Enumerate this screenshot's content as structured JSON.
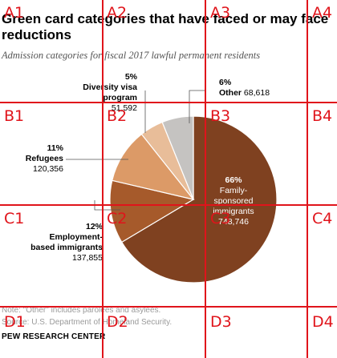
{
  "title": "Green card categories that have faced or may face reductions",
  "subtitle": "Admission categories for fiscal 2017 lawful permanent residents",
  "note": "Note: \"Other\" includes parolees and asylees.",
  "source": "Source: U.S. Department of Homeland Security.",
  "brand": "PEW RESEARCH CENTER",
  "chart_data": {
    "type": "pie",
    "slices": [
      {
        "pct": "66%",
        "name_lines": [
          "Family-",
          "sponsored",
          "immigrants"
        ],
        "value": "748,746",
        "color": "#7f4120"
      },
      {
        "pct": "12%",
        "name_lines": [
          "Employment-",
          "based immigrants"
        ],
        "value": "137,855",
        "color": "#a65a2b"
      },
      {
        "pct": "11%",
        "name_lines": [
          "Refugees"
        ],
        "value": "120,356",
        "color": "#dc9a67"
      },
      {
        "pct": "5%",
        "name_lines": [
          "Diversity visa",
          "program"
        ],
        "value": "51,592",
        "color": "#e8bd99"
      },
      {
        "pct": "6%",
        "name_lines": [
          "Other"
        ],
        "value": "68,618",
        "color": "#c5c3c1"
      }
    ]
  },
  "grid": {
    "cols": [
      "1",
      "2",
      "3",
      "4"
    ],
    "rows": [
      "A",
      "B",
      "C",
      "D"
    ],
    "color": "#e0141b"
  }
}
